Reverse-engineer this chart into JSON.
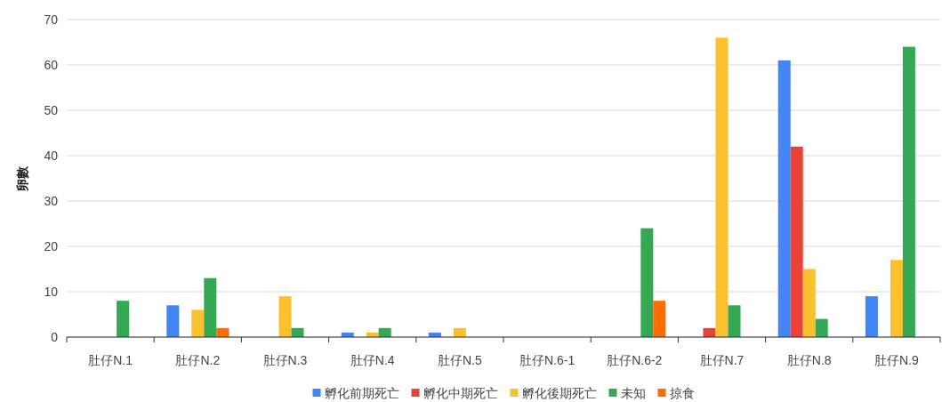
{
  "chart_data": {
    "type": "bar",
    "ylabel": "卵數",
    "categories": [
      "肚仔N.1",
      "肚仔N.2",
      "肚仔N.3",
      "肚仔N.4",
      "肚仔N.5",
      "肚仔N.6-1",
      "肚仔N.6-2",
      "肚仔N.7",
      "肚仔N.8",
      "肚仔N.9"
    ],
    "series": [
      {
        "name": "孵化前期死亡",
        "color": "#4285f4",
        "values": [
          0,
          7,
          0,
          1,
          1,
          0,
          0,
          0,
          61,
          9
        ]
      },
      {
        "name": "孵化中期死亡",
        "color": "#ea4335",
        "values": [
          0,
          0,
          0,
          0,
          0,
          0,
          0,
          2,
          42,
          0
        ]
      },
      {
        "name": "孵化後期死亡",
        "color": "#fbc02d",
        "values": [
          0,
          6,
          9,
          1,
          2,
          0,
          0,
          66,
          15,
          17
        ]
      },
      {
        "name": "未知",
        "color": "#34a853",
        "values": [
          8,
          13,
          2,
          2,
          0,
          0,
          24,
          7,
          4,
          64
        ]
      },
      {
        "name": "掠食",
        "color": "#ff6d01",
        "values": [
          0,
          2,
          0,
          0,
          0,
          0,
          8,
          0,
          0,
          0
        ]
      }
    ],
    "ylim": [
      0,
      70
    ],
    "yticks": [
      0,
      10,
      20,
      30,
      40,
      50,
      60,
      70
    ],
    "grid": "y",
    "legend": "bottom"
  }
}
